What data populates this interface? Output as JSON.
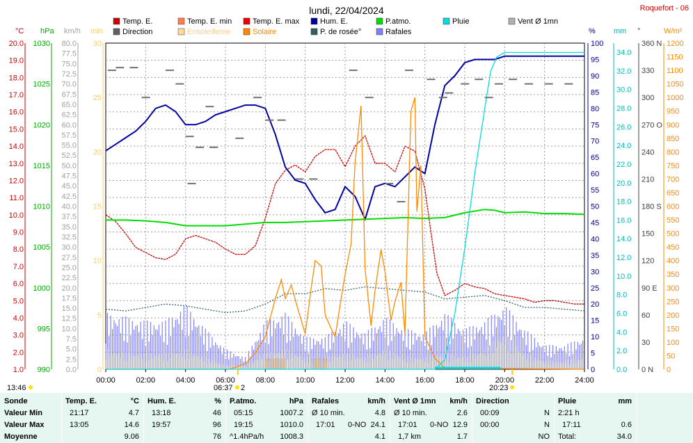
{
  "header": {
    "date": "lundi, 22/04/2024",
    "station": "Roquefort - 06",
    "sunrise": "06:37",
    "sunset": "20:23",
    "moonrise": "13:46",
    "moon_phase_num": "2"
  },
  "legend": [
    {
      "label": "Temp. E.",
      "color": "#cc0000"
    },
    {
      "label": "Temp. E. min",
      "color": "#ff7f4f"
    },
    {
      "label": "Temp. E. max",
      "color": "#ee0000"
    },
    {
      "label": "Hum. E.",
      "color": "#0000a0"
    },
    {
      "label": "P.atmo.",
      "color": "#00dd00"
    },
    {
      "label": "Pluie",
      "color": "#00dddd"
    },
    {
      "label": "Vent Ø 1mn",
      "color": "#b0b0b0"
    },
    {
      "label": "Direction",
      "color": "#606060"
    },
    {
      "label": "Ensoleilleme",
      "color": "#ffd9a0"
    },
    {
      "label": "Solaire",
      "color": "#ff8800"
    },
    {
      "label": "P. de rosée°",
      "color": "#306060"
    },
    {
      "label": "Rafales",
      "color": "#8080ff"
    }
  ],
  "axes": {
    "temp": {
      "unit": "°C",
      "color": "#cc0000",
      "ticks": [
        "20.0",
        "19.0",
        "18.0",
        "17.0",
        "16.0",
        "15.0",
        "14.0",
        "13.0",
        "12.0",
        "11.0",
        "10.0",
        "9.0",
        "8.0",
        "7.0",
        "6.0",
        "5.0",
        "4.0",
        "3.0",
        "2.0",
        "1.0"
      ]
    },
    "press": {
      "unit": "hPa",
      "color": "#00aa00",
      "ticks": [
        "1030",
        "1025",
        "1020",
        "1015",
        "1010",
        "1005",
        "1000",
        "995",
        "990"
      ]
    },
    "wind": {
      "unit": "km/h",
      "color": "#a0a0a0",
      "ticks": [
        "80.0",
        "77.5",
        "75.0",
        "72.5",
        "70.0",
        "67.5",
        "65.0",
        "62.5",
        "60.0",
        "57.5",
        "55.0",
        "52.5",
        "50.0",
        "47.5",
        "45.0",
        "42.5",
        "40.0",
        "37.5",
        "35.0",
        "32.5",
        "30.0",
        "27.5",
        "25.0",
        "22.5",
        "20.0",
        "17.5",
        "15.0",
        "12.5",
        "10.0",
        "7.5",
        "5.0",
        "2.5",
        "0.0"
      ]
    },
    "sun_min": {
      "unit": "min",
      "color": "#ffcc66",
      "ticks": [
        "30",
        "25",
        "20",
        "15",
        "10",
        "5",
        "0"
      ]
    },
    "hum": {
      "unit": "%",
      "color": "#000080",
      "ticks": [
        "100",
        "95",
        "90",
        "85",
        "80",
        "75",
        "70",
        "65",
        "60",
        "55",
        "50",
        "45",
        "40",
        "35",
        "30",
        "25",
        "20",
        "15",
        "10",
        "5",
        "0"
      ]
    },
    "rain": {
      "unit": "mm",
      "color": "#00cccc",
      "ticks": [
        "34.0",
        "32.0",
        "30.0",
        "28.0",
        "26.0",
        "24.0",
        "22.0",
        "20.0",
        "18.0",
        "16.0",
        "14.0",
        "12.0",
        "10.0",
        "8.0",
        "6.0",
        "4.0",
        "2.0",
        "0.0"
      ]
    },
    "dir": {
      "unit": "°",
      "color": "#606060",
      "ticks": [
        "360 N",
        "330",
        "300",
        "270 O",
        "240",
        "210",
        "180 S",
        "150",
        "120",
        "90  E",
        "60",
        "30",
        "0   N"
      ]
    },
    "solar": {
      "unit": "W/m²",
      "color": "#ff8800",
      "ticks": [
        "1200",
        "1150",
        "1100",
        "1050",
        "1000",
        "950",
        "900",
        "850",
        "800",
        "750",
        "700",
        "650",
        "600",
        "550",
        "500",
        "450",
        "400",
        "350",
        "300",
        "250",
        "200",
        "150",
        "100",
        "50",
        "0"
      ]
    },
    "time": {
      "ticks": [
        "00:00",
        "02:00",
        "04:00",
        "06:00",
        "08:00",
        "10:00",
        "12:00",
        "14:00",
        "16:00",
        "18:00",
        "20:00",
        "22:00",
        "24:00"
      ]
    }
  },
  "chart_data": {
    "type": "line",
    "title": "lundi, 22/04/2024",
    "x_hours": [
      0,
      1,
      2,
      3,
      4,
      5,
      6,
      7,
      8,
      9,
      10,
      11,
      12,
      13,
      14,
      15,
      16,
      17,
      18,
      19,
      20,
      21,
      22,
      23,
      24
    ],
    "series": [
      {
        "name": "Temp. E.",
        "axis": "temp",
        "color": "#cc0000",
        "x": [
          0,
          0.5,
          1,
          1.5,
          2,
          2.5,
          3,
          3.5,
          4,
          4.5,
          5,
          5.5,
          6,
          6.5,
          7,
          7.5,
          8,
          8.5,
          9,
          9.5,
          10,
          10.5,
          11,
          11.5,
          12,
          12.5,
          13,
          13.5,
          14,
          14.5,
          15,
          15.5,
          16,
          16.3,
          16.6,
          17,
          17.5,
          18,
          18.5,
          19,
          19.5,
          20,
          20.5,
          21,
          21.5,
          22,
          22.5,
          23,
          23.5,
          24
        ],
        "y": [
          10.0,
          9.6,
          8.9,
          8.1,
          7.8,
          7.5,
          7.4,
          7.7,
          8.6,
          8.8,
          8.6,
          8.4,
          8.0,
          7.7,
          7.7,
          8.2,
          9.8,
          11.8,
          12.6,
          12.9,
          12.5,
          13.4,
          13.8,
          13.8,
          12.8,
          14.0,
          14.6,
          13.0,
          13.0,
          12.5,
          14.0,
          13.7,
          11.5,
          9.0,
          6.6,
          5.3,
          5.6,
          6.0,
          5.8,
          5.7,
          5.4,
          5.3,
          5.2,
          5.1,
          4.9,
          5.0,
          5.0,
          4.9,
          4.8,
          4.8
        ]
      },
      {
        "name": "Hum. E.",
        "axis": "hum",
        "color": "#0000a0",
        "x": [
          0,
          0.5,
          1,
          1.5,
          2,
          2.5,
          3,
          3.5,
          4,
          4.5,
          5,
          5.5,
          6,
          6.5,
          7,
          7.5,
          8,
          8.5,
          9,
          9.5,
          10,
          10.5,
          11,
          11.5,
          12,
          12.5,
          13,
          13.5,
          14,
          14.5,
          15,
          15.5,
          16,
          16.5,
          17,
          17.5,
          18,
          18.5,
          19,
          19.5,
          20,
          21,
          22,
          23,
          24
        ],
        "y": [
          67,
          69,
          71,
          73,
          76,
          80,
          81,
          79,
          75,
          75,
          76,
          78,
          79,
          80,
          81,
          81,
          80,
          72,
          62,
          58,
          57,
          52,
          48,
          49,
          56,
          53,
          46,
          56,
          57,
          56,
          59,
          62,
          60,
          75,
          87,
          90,
          94,
          95,
          95,
          95,
          96,
          96,
          96,
          96,
          96
        ]
      },
      {
        "name": "P.atmo.",
        "axis": "press",
        "color": "#00dd00",
        "x": [
          0,
          1,
          2,
          3,
          4,
          5,
          6,
          7,
          8,
          9,
          10,
          11,
          12,
          13,
          14,
          15,
          16,
          17,
          18,
          19,
          19.5,
          20,
          21,
          22,
          23,
          24
        ],
        "y": [
          1008.3,
          1008.3,
          1008.2,
          1008.0,
          1007.6,
          1007.6,
          1007.6,
          1007.8,
          1008.0,
          1008.0,
          1008.1,
          1008.2,
          1008.3,
          1008.4,
          1008.5,
          1008.6,
          1008.5,
          1008.6,
          1009.2,
          1009.6,
          1009.5,
          1009.2,
          1009.3,
          1009.1,
          1009.1,
          1009.0
        ]
      },
      {
        "name": "P. de rosée°",
        "axis": "temp",
        "color": "#306060",
        "x": [
          0,
          1,
          2,
          3,
          4,
          5,
          6,
          7,
          8,
          9,
          10,
          11,
          12,
          13,
          14,
          15,
          16,
          17,
          18,
          19,
          20,
          21,
          22,
          23,
          24
        ],
        "y": [
          4.5,
          4.4,
          4.6,
          4.8,
          4.7,
          4.5,
          4.3,
          4.4,
          4.8,
          5.4,
          5.4,
          5.7,
          5.6,
          5.8,
          5.7,
          5.6,
          5.5,
          5.1,
          5.2,
          5.3,
          5.0,
          4.6,
          4.6,
          4.5,
          4.4
        ]
      },
      {
        "name": "Solaire",
        "axis": "solar",
        "color": "#ff8800",
        "x": [
          0,
          6.2,
          7,
          7.5,
          8,
          8.5,
          8.8,
          9,
          9.3,
          9.6,
          10,
          10.3,
          10.5,
          10.8,
          11,
          11.3,
          11.5,
          11.8,
          12,
          12.3,
          12.5,
          12.8,
          13,
          13.3,
          13.5,
          13.8,
          14,
          14.3,
          14.5,
          14.8,
          15,
          15.3,
          15.5,
          15.6,
          15.8,
          16,
          16.5,
          17,
          24
        ],
        "y": [
          0,
          0,
          20,
          60,
          120,
          260,
          330,
          260,
          310,
          230,
          130,
          300,
          400,
          380,
          200,
          150,
          120,
          260,
          350,
          460,
          760,
          970,
          370,
          160,
          290,
          440,
          360,
          180,
          250,
          320,
          130,
          950,
          1000,
          580,
          750,
          120,
          40,
          5,
          0
        ]
      },
      {
        "name": "Ensoleilleme",
        "axis": "sun_min",
        "color": "#ffd9a0",
        "bars": [
          [
            8.0,
            9.0,
            1.0
          ],
          [
            10.3,
            11.1,
            1.0
          ]
        ]
      },
      {
        "name": "Pluie",
        "axis": "rain",
        "color": "#00dddd",
        "x": [
          0,
          16.5,
          17.0,
          17.5,
          18.0,
          18.5,
          19.0,
          19.3,
          19.6,
          20.0,
          24
        ],
        "y": [
          0,
          0,
          1.0,
          6.0,
          13.0,
          21.0,
          28.0,
          32.0,
          33.5,
          34.0,
          34.0
        ]
      },
      {
        "name": "Rafales",
        "axis": "wind",
        "color": "#8080ff",
        "x": [
          0,
          1,
          2,
          3,
          4,
          5,
          6,
          7,
          8,
          9,
          10,
          11,
          12,
          13,
          14,
          15,
          16,
          17,
          18,
          19,
          20,
          21,
          22,
          23,
          24
        ],
        "y": [
          14,
          13,
          12,
          12,
          16,
          10,
          5,
          3,
          12,
          14,
          8,
          8,
          12,
          9,
          13,
          10,
          9,
          14,
          10,
          12,
          16,
          10,
          6,
          6,
          8
        ]
      },
      {
        "name": "Vent Ø 1mn",
        "axis": "wind",
        "color": "#b0b0b0",
        "x": [
          0,
          1,
          2,
          3,
          4,
          5,
          6,
          7,
          8,
          9,
          10,
          11,
          12,
          13,
          14,
          15,
          16,
          17,
          18,
          19,
          20,
          21,
          22,
          23,
          24
        ],
        "y": [
          5,
          4,
          4,
          4,
          5,
          3,
          1,
          1,
          4,
          5,
          3,
          3,
          4,
          3,
          5,
          3,
          3,
          4,
          3,
          5,
          9,
          4,
          2,
          2,
          3
        ]
      }
    ],
    "direction_points": [
      [
        0.1,
        330
      ],
      [
        0.5,
        333
      ],
      [
        1.2,
        333
      ],
      [
        1.8,
        300
      ],
      [
        3.0,
        330
      ],
      [
        3.5,
        315
      ],
      [
        4.0,
        257
      ],
      [
        4.5,
        245
      ],
      [
        5.2,
        245
      ],
      [
        4.1,
        205
      ],
      [
        5.0,
        290
      ],
      [
        6.5,
        255
      ],
      [
        7.4,
        300
      ],
      [
        8.0,
        275
      ],
      [
        8.6,
        275
      ],
      [
        9.5,
        210
      ],
      [
        10.2,
        210
      ],
      [
        12.2,
        330
      ],
      [
        13.0,
        300
      ],
      [
        14.0,
        205
      ],
      [
        15.0,
        330
      ],
      [
        14.6,
        185
      ],
      [
        16.1,
        320
      ],
      [
        16.7,
        300
      ],
      [
        17.0,
        305
      ],
      [
        17.8,
        315
      ],
      [
        18.5,
        320
      ],
      [
        19.0,
        300
      ],
      [
        19.5,
        315
      ],
      [
        20.2,
        320
      ],
      [
        21.0,
        315
      ],
      [
        22.0,
        315
      ],
      [
        23.0,
        315
      ]
    ]
  },
  "stats": {
    "headers": [
      "Sonde",
      "Temp. E.",
      "°C",
      "Hum. E.",
      "%",
      "P.atmo.",
      "hPa",
      "Rafales",
      "km/h",
      "Vent Ø 1mn",
      "km/h",
      "Direction",
      "",
      "Pluie",
      "mm"
    ],
    "rows": [
      {
        "label": "Valeur Min",
        "temp_t": "21:17",
        "temp_v": "4.7",
        "hum_t": "13:18",
        "hum_v": "46",
        "pres_t": "05:15",
        "pres_v": "1007.2",
        "raf_t": "Ø 10 min.",
        "raf_v": "4.8",
        "vent_t": "Ø 10 min.",
        "vent_v": "2.6",
        "dir_t": "00:09",
        "dir_v": "N",
        "rain_t": "2:21 h",
        "rain_v": ""
      },
      {
        "label": "Valeur Max",
        "temp_t": "13:05",
        "temp_v": "14.6",
        "hum_t": "19:57",
        "hum_v": "96",
        "pres_t": "19:15",
        "pres_v": "1010.0",
        "raf_t": "17:01",
        "raf_d": "0-NO",
        "raf_v": "24.1",
        "vent_t": "17:01",
        "vent_d": "0-NO",
        "vent_v": "12.9",
        "dir_t": "00:00",
        "dir_v": "N",
        "rain_t": "17:11",
        "rain_v": "0.6"
      },
      {
        "label": "Moyenne",
        "temp_t": "",
        "temp_v": "9.06",
        "hum_t": "",
        "hum_v": "76",
        "pres_t": "^1.4hPa/h",
        "pres_v": "1008.3",
        "raf_t": "",
        "raf_v": "4.1",
        "vent_t": "1,7 km",
        "vent_v": "1.7",
        "dir_t": "",
        "dir_v": "NO",
        "rain_t": "Total:",
        "rain_v": "34.0"
      }
    ]
  }
}
